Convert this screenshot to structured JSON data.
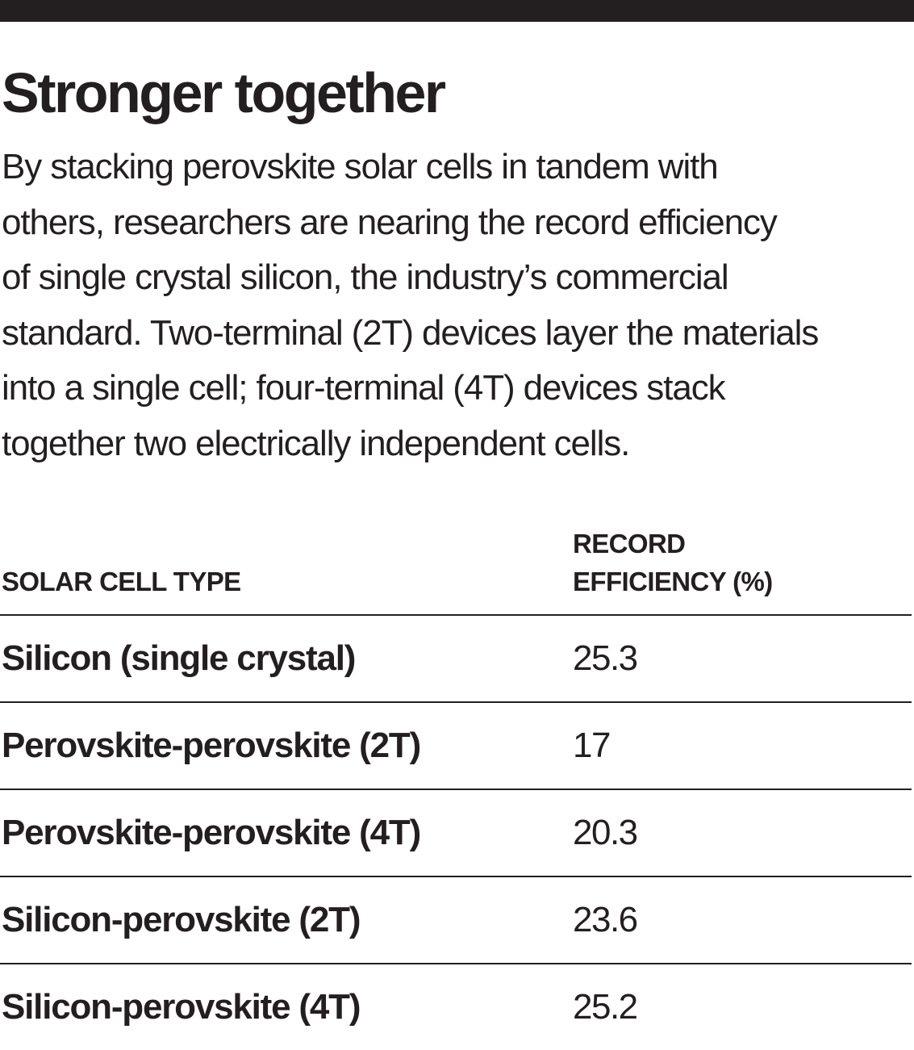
{
  "title": "Stronger together",
  "subtitle_lines": [
    "By stacking perovskite solar cells in tandem with",
    "others, researchers are nearing the record efficiency",
    "of single crystal silicon, the industry’s commercial",
    "standard. Two-terminal (2T) devices layer the materials",
    "into a single cell; four-terminal (4T) devices stack",
    "together two electrically independent cells."
  ],
  "colors": {
    "text": "#231f20",
    "bar": "#231f20",
    "background": "#ffffff"
  },
  "chart_data": {
    "type": "table",
    "columns": [
      "SOLAR CELL TYPE",
      "RECORD EFFICIENCY (%)"
    ],
    "column_header_lines": {
      "type": [
        "SOLAR CELL TYPE"
      ],
      "efficiency": [
        "RECORD",
        "EFFICIENCY (%)"
      ]
    },
    "rows": [
      {
        "type": "Silicon (single crystal)",
        "efficiency": "25.3"
      },
      {
        "type": "Perovskite-perovskite (2T)",
        "efficiency": "17"
      },
      {
        "type": "Perovskite-perovskite (4T)",
        "efficiency": "20.3"
      },
      {
        "type": "Silicon-perovskite  (2T)",
        "efficiency": "23.6"
      },
      {
        "type": "Silicon-perovskite (4T)",
        "efficiency": "25.2"
      }
    ]
  }
}
